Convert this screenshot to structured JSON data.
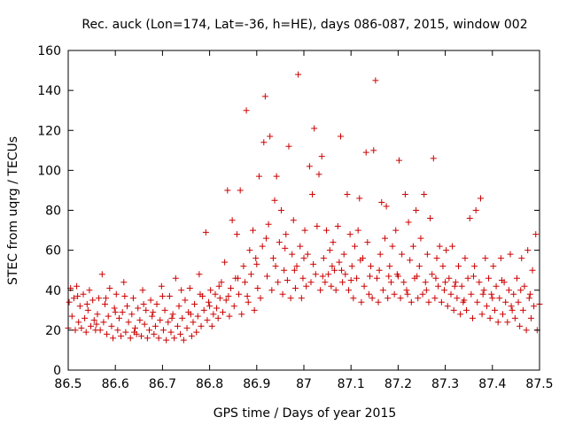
{
  "chart_data": {
    "type": "scatter",
    "title": "Rec. auck (Lon=174, Lat=-36, h=HE), days 086-087, 2015, window 002",
    "xlabel": "GPS time / Days of year 2015",
    "ylabel": "STEC from uqrg / TECUs",
    "xlim": [
      86.5,
      87.5
    ],
    "ylim": [
      0,
      160
    ],
    "x_ticks": [
      86.5,
      86.6,
      86.7,
      86.8,
      86.9,
      87.0,
      87.1,
      87.2,
      87.3,
      87.4,
      87.5
    ],
    "x_tick_labels": [
      "86.5",
      "86.6",
      "86.7",
      "86.8",
      "86.9",
      "87",
      "87.1",
      "87.2",
      "87.3",
      "87.4",
      "87.5"
    ],
    "y_ticks": [
      0,
      20,
      40,
      60,
      80,
      100,
      120,
      140,
      160
    ],
    "y_tick_labels": [
      "0",
      "20",
      "40",
      "60",
      "80",
      "100",
      "120",
      "140",
      "160"
    ],
    "marker": "plus",
    "color": "#cc0000",
    "grid": false,
    "points": [
      [
        86.5,
        21
      ],
      [
        86.502,
        34
      ],
      [
        86.505,
        41
      ],
      [
        86.508,
        27
      ],
      [
        86.512,
        36
      ],
      [
        86.515,
        20
      ],
      [
        86.518,
        42
      ],
      [
        86.522,
        24
      ],
      [
        86.525,
        32
      ],
      [
        86.528,
        21
      ],
      [
        86.532,
        38
      ],
      [
        86.535,
        26
      ],
      [
        86.538,
        19
      ],
      [
        86.542,
        30
      ],
      [
        86.545,
        40
      ],
      [
        86.548,
        22
      ],
      [
        86.552,
        35
      ],
      [
        86.555,
        25
      ],
      [
        86.558,
        20
      ],
      [
        86.562,
        28
      ],
      [
        86.565,
        36
      ],
      [
        86.568,
        20
      ],
      [
        86.572,
        48
      ],
      [
        86.575,
        24
      ],
      [
        86.578,
        33
      ],
      [
        86.582,
        18
      ],
      [
        86.585,
        27
      ],
      [
        86.588,
        41
      ],
      [
        86.592,
        22
      ],
      [
        86.595,
        16
      ],
      [
        86.598,
        31
      ],
      [
        86.602,
        38
      ],
      [
        86.605,
        20
      ],
      [
        86.608,
        26
      ],
      [
        86.612,
        17
      ],
      [
        86.615,
        29
      ],
      [
        86.618,
        44
      ],
      [
        86.622,
        19
      ],
      [
        86.625,
        32
      ],
      [
        86.628,
        24
      ],
      [
        86.632,
        16
      ],
      [
        86.635,
        28
      ],
      [
        86.638,
        36
      ],
      [
        86.642,
        21
      ],
      [
        86.645,
        18
      ],
      [
        86.648,
        31
      ],
      [
        86.652,
        25
      ],
      [
        86.655,
        17
      ],
      [
        86.658,
        40
      ],
      [
        86.662,
        23
      ],
      [
        86.665,
        30
      ],
      [
        86.668,
        16
      ],
      [
        86.672,
        20
      ],
      [
        86.675,
        35
      ],
      [
        86.678,
        27
      ],
      [
        86.682,
        18
      ],
      [
        86.685,
        22
      ],
      [
        86.688,
        33
      ],
      [
        86.692,
        16
      ],
      [
        86.695,
        25
      ],
      [
        86.698,
        42
      ],
      [
        86.702,
        20
      ],
      [
        86.705,
        30
      ],
      [
        86.708,
        15
      ],
      [
        86.712,
        24
      ],
      [
        86.715,
        37
      ],
      [
        86.718,
        19
      ],
      [
        86.722,
        28
      ],
      [
        86.725,
        16
      ],
      [
        86.728,
        46
      ],
      [
        86.732,
        22
      ],
      [
        86.735,
        32
      ],
      [
        86.738,
        18
      ],
      [
        86.742,
        26
      ],
      [
        86.745,
        15
      ],
      [
        86.748,
        35
      ],
      [
        86.752,
        21
      ],
      [
        86.755,
        29
      ],
      [
        86.758,
        41
      ],
      [
        86.762,
        17
      ],
      [
        86.765,
        24
      ],
      [
        86.768,
        33
      ],
      [
        86.772,
        19
      ],
      [
        86.775,
        27
      ],
      [
        86.778,
        48
      ],
      [
        86.782,
        22
      ],
      [
        86.785,
        37
      ],
      [
        86.788,
        30
      ],
      [
        86.792,
        69
      ],
      [
        86.795,
        25
      ],
      [
        86.798,
        34
      ],
      [
        86.802,
        40
      ],
      [
        86.805,
        22
      ],
      [
        86.808,
        28
      ],
      [
        86.812,
        38
      ],
      [
        86.815,
        31
      ],
      [
        86.818,
        26
      ],
      [
        86.822,
        36
      ],
      [
        86.825,
        44
      ],
      [
        86.828,
        29
      ],
      [
        86.832,
        54
      ],
      [
        86.835,
        35
      ],
      [
        86.838,
        90
      ],
      [
        86.842,
        27
      ],
      [
        86.845,
        41
      ],
      [
        86.848,
        75
      ],
      [
        86.852,
        32
      ],
      [
        86.855,
        46
      ],
      [
        86.858,
        68
      ],
      [
        86.862,
        38
      ],
      [
        86.865,
        90
      ],
      [
        86.868,
        28
      ],
      [
        86.872,
        52
      ],
      [
        86.875,
        44
      ],
      [
        86.878,
        130
      ],
      [
        86.882,
        34
      ],
      [
        86.885,
        60
      ],
      [
        86.888,
        48
      ],
      [
        86.892,
        70
      ],
      [
        86.895,
        30
      ],
      [
        86.898,
        56
      ],
      [
        86.902,
        41
      ],
      [
        86.905,
        97
      ],
      [
        86.908,
        36
      ],
      [
        86.912,
        62
      ],
      [
        86.915,
        114
      ],
      [
        86.918,
        137
      ],
      [
        86.922,
        47
      ],
      [
        86.925,
        73
      ],
      [
        86.928,
        117
      ],
      [
        86.932,
        40
      ],
      [
        86.935,
        56
      ],
      [
        86.938,
        85
      ],
      [
        86.942,
        97
      ],
      [
        86.945,
        44
      ],
      [
        86.948,
        64
      ],
      [
        86.952,
        80
      ],
      [
        86.955,
        38
      ],
      [
        86.958,
        50
      ],
      [
        86.962,
        68
      ],
      [
        86.965,
        45
      ],
      [
        86.968,
        112
      ],
      [
        86.972,
        36
      ],
      [
        86.975,
        58
      ],
      [
        86.978,
        75
      ],
      [
        86.982,
        41
      ],
      [
        86.985,
        52
      ],
      [
        86.988,
        148
      ],
      [
        86.992,
        62
      ],
      [
        86.995,
        36
      ],
      [
        86.998,
        46
      ],
      [
        87.002,
        70
      ],
      [
        87.005,
        42
      ],
      [
        87.008,
        58
      ],
      [
        87.012,
        102
      ],
      [
        87.015,
        44
      ],
      [
        87.018,
        88
      ],
      [
        87.022,
        121
      ],
      [
        87.025,
        48
      ],
      [
        87.028,
        72
      ],
      [
        87.032,
        98
      ],
      [
        87.035,
        40
      ],
      [
        87.038,
        107
      ],
      [
        87.042,
        56
      ],
      [
        87.045,
        44
      ],
      [
        87.048,
        70
      ],
      [
        87.052,
        48
      ],
      [
        87.055,
        60
      ],
      [
        87.058,
        42
      ],
      [
        87.062,
        64
      ],
      [
        87.065,
        50
      ],
      [
        87.068,
        40
      ],
      [
        87.072,
        72
      ],
      [
        87.075,
        54
      ],
      [
        87.078,
        117
      ],
      [
        87.082,
        44
      ],
      [
        87.085,
        58
      ],
      [
        87.088,
        48
      ],
      [
        87.092,
        88
      ],
      [
        87.095,
        40
      ],
      [
        87.098,
        68
      ],
      [
        87.102,
        52
      ],
      [
        87.105,
        36
      ],
      [
        87.108,
        62
      ],
      [
        87.112,
        46
      ],
      [
        87.115,
        70
      ],
      [
        87.118,
        86
      ],
      [
        87.122,
        34
      ],
      [
        87.125,
        56
      ],
      [
        87.128,
        42
      ],
      [
        87.132,
        109
      ],
      [
        87.135,
        64
      ],
      [
        87.138,
        38
      ],
      [
        87.142,
        52
      ],
      [
        87.145,
        36
      ],
      [
        87.148,
        110
      ],
      [
        87.152,
        145
      ],
      [
        87.155,
        46
      ],
      [
        87.158,
        34
      ],
      [
        87.162,
        58
      ],
      [
        87.165,
        84
      ],
      [
        87.168,
        40
      ],
      [
        87.172,
        66
      ],
      [
        87.175,
        82
      ],
      [
        87.178,
        36
      ],
      [
        87.182,
        52
      ],
      [
        87.185,
        44
      ],
      [
        87.188,
        62
      ],
      [
        87.192,
        38
      ],
      [
        87.195,
        70
      ],
      [
        87.198,
        48
      ],
      [
        87.202,
        105
      ],
      [
        87.205,
        36
      ],
      [
        87.208,
        58
      ],
      [
        87.212,
        44
      ],
      [
        87.215,
        88
      ],
      [
        87.218,
        40
      ],
      [
        87.222,
        74
      ],
      [
        87.225,
        55
      ],
      [
        87.228,
        34
      ],
      [
        87.232,
        62
      ],
      [
        87.235,
        46
      ],
      [
        87.238,
        80
      ],
      [
        87.242,
        36
      ],
      [
        87.245,
        52
      ],
      [
        87.248,
        66
      ],
      [
        87.252,
        38
      ],
      [
        87.255,
        88
      ],
      [
        87.258,
        44
      ],
      [
        87.262,
        58
      ],
      [
        87.265,
        34
      ],
      [
        87.268,
        76
      ],
      [
        87.272,
        48
      ],
      [
        87.275,
        106
      ],
      [
        87.278,
        36
      ],
      [
        87.282,
        56
      ],
      [
        87.285,
        42
      ],
      [
        87.288,
        62
      ],
      [
        87.292,
        34
      ],
      [
        87.295,
        52
      ],
      [
        87.298,
        40
      ],
      [
        87.302,
        60
      ],
      [
        87.305,
        32
      ],
      [
        87.308,
        46
      ],
      [
        87.312,
        38
      ],
      [
        87.315,
        62
      ],
      [
        87.318,
        30
      ],
      [
        87.322,
        44
      ],
      [
        87.325,
        36
      ],
      [
        87.328,
        52
      ],
      [
        87.332,
        28
      ],
      [
        87.335,
        42
      ],
      [
        87.338,
        34
      ],
      [
        87.342,
        56
      ],
      [
        87.345,
        30
      ],
      [
        87.348,
        46
      ],
      [
        87.352,
        76
      ],
      [
        87.355,
        38
      ],
      [
        87.358,
        26
      ],
      [
        87.362,
        52
      ],
      [
        87.365,
        80
      ],
      [
        87.368,
        34
      ],
      [
        87.372,
        44
      ],
      [
        87.375,
        86
      ],
      [
        87.378,
        28
      ],
      [
        87.382,
        40
      ],
      [
        87.385,
        56
      ],
      [
        87.388,
        32
      ],
      [
        87.392,
        46
      ],
      [
        87.395,
        26
      ],
      [
        87.398,
        38
      ],
      [
        87.402,
        52
      ],
      [
        87.405,
        30
      ],
      [
        87.408,
        42
      ],
      [
        87.412,
        24
      ],
      [
        87.415,
        36
      ],
      [
        87.418,
        56
      ],
      [
        87.422,
        28
      ],
      [
        87.425,
        44
      ],
      [
        87.428,
        34
      ],
      [
        87.432,
        24
      ],
      [
        87.435,
        40
      ],
      [
        87.438,
        58
      ],
      [
        87.442,
        30
      ],
      [
        87.445,
        38
      ],
      [
        87.448,
        26
      ],
      [
        87.452,
        46
      ],
      [
        87.455,
        34
      ],
      [
        87.458,
        22
      ],
      [
        87.462,
        56
      ],
      [
        87.465,
        30
      ],
      [
        87.468,
        42
      ],
      [
        87.472,
        20
      ],
      [
        87.475,
        60
      ],
      [
        87.478,
        36
      ],
      [
        87.482,
        26
      ],
      [
        87.485,
        50
      ],
      [
        87.488,
        32
      ],
      [
        87.492,
        68
      ],
      [
        87.495,
        20
      ],
      [
        86.52,
        37
      ],
      [
        86.54,
        33
      ],
      [
        86.56,
        23
      ],
      [
        86.58,
        36
      ],
      [
        86.6,
        29
      ],
      [
        86.62,
        37
      ],
      [
        86.64,
        19
      ],
      [
        86.66,
        33
      ],
      [
        86.68,
        29
      ],
      [
        86.7,
        37
      ],
      [
        86.72,
        26
      ],
      [
        86.74,
        40
      ],
      [
        86.76,
        28
      ],
      [
        86.78,
        38
      ],
      [
        86.8,
        32
      ],
      [
        86.82,
        42
      ],
      [
        86.84,
        37
      ],
      [
        86.86,
        46
      ],
      [
        86.88,
        37
      ],
      [
        86.9,
        53
      ],
      [
        86.92,
        66
      ],
      [
        86.94,
        52
      ],
      [
        86.96,
        61
      ],
      [
        86.98,
        50
      ],
      [
        87.0,
        56
      ],
      [
        87.02,
        53
      ],
      [
        87.04,
        47
      ],
      [
        87.06,
        52
      ],
      [
        87.08,
        50
      ],
      [
        87.1,
        45
      ],
      [
        87.12,
        55
      ],
      [
        87.14,
        47
      ],
      [
        87.16,
        50
      ],
      [
        87.18,
        47
      ],
      [
        87.2,
        47
      ],
      [
        87.22,
        38
      ],
      [
        87.24,
        47
      ],
      [
        87.26,
        40
      ],
      [
        87.28,
        46
      ],
      [
        87.3,
        44
      ],
      [
        87.32,
        42
      ],
      [
        87.34,
        35
      ],
      [
        87.36,
        47
      ],
      [
        87.38,
        38
      ],
      [
        87.4,
        36
      ],
      [
        87.42,
        45
      ],
      [
        87.44,
        32
      ],
      [
        87.46,
        40
      ],
      [
        87.48,
        38
      ],
      [
        87.5,
        33
      ]
    ]
  }
}
